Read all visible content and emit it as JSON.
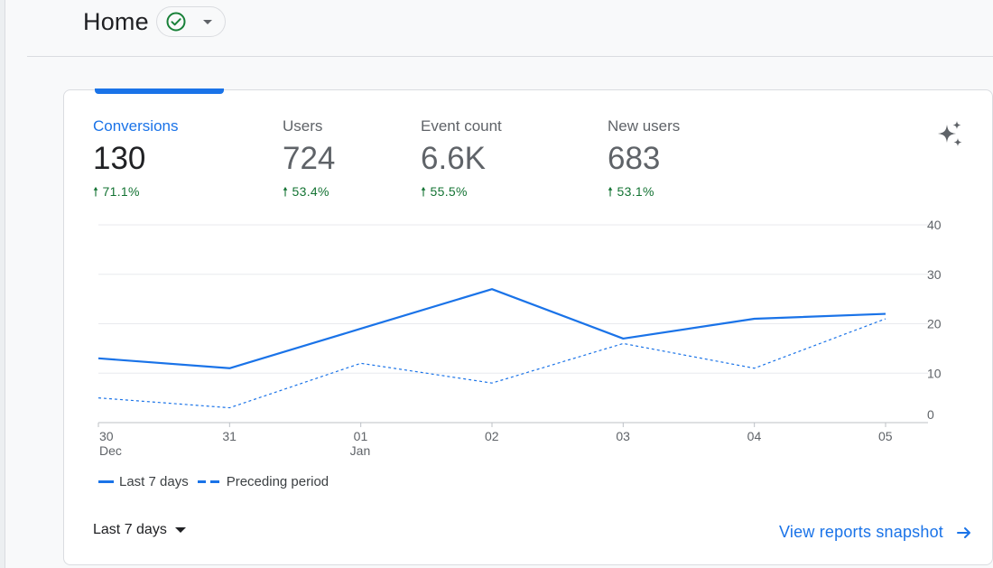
{
  "header": {
    "title": "Home",
    "status_icon": "check-circle-icon",
    "status_color": "#188038"
  },
  "metrics": [
    {
      "label": "Conversions",
      "value": "130",
      "delta": "71.1%",
      "active": true
    },
    {
      "label": "Users",
      "value": "724",
      "delta": "53.4%",
      "active": false
    },
    {
      "label": "Event count",
      "value": "6.6K",
      "delta": "55.5%",
      "active": false
    },
    {
      "label": "New users",
      "value": "683",
      "delta": "53.1%",
      "active": false
    }
  ],
  "insights_icon": "sparkle-icon",
  "chart_data": {
    "type": "line",
    "x": [
      "30",
      "31",
      "01",
      "02",
      "03",
      "04",
      "05"
    ],
    "x_sublabels": [
      "Dec",
      "",
      "Jan",
      "",
      "",
      "",
      ""
    ],
    "ylim": [
      0,
      40
    ],
    "yticks": [
      0,
      10,
      20,
      30,
      40
    ],
    "grid": true,
    "series": [
      {
        "name": "Last 7 days",
        "style": "solid",
        "values": [
          13,
          11,
          19,
          27,
          17,
          21,
          22
        ]
      },
      {
        "name": "Preceding period",
        "style": "dashed",
        "values": [
          5,
          3,
          12,
          8,
          16,
          11,
          21
        ]
      }
    ],
    "color": "#1a73e8"
  },
  "legend": {
    "solid_label": "Last 7 days",
    "dashed_label": "Preceding period"
  },
  "footer": {
    "range_label": "Last 7 days",
    "snapshot_link": "View reports snapshot"
  },
  "colors": {
    "accent": "#1a73e8",
    "positive": "#137333"
  }
}
